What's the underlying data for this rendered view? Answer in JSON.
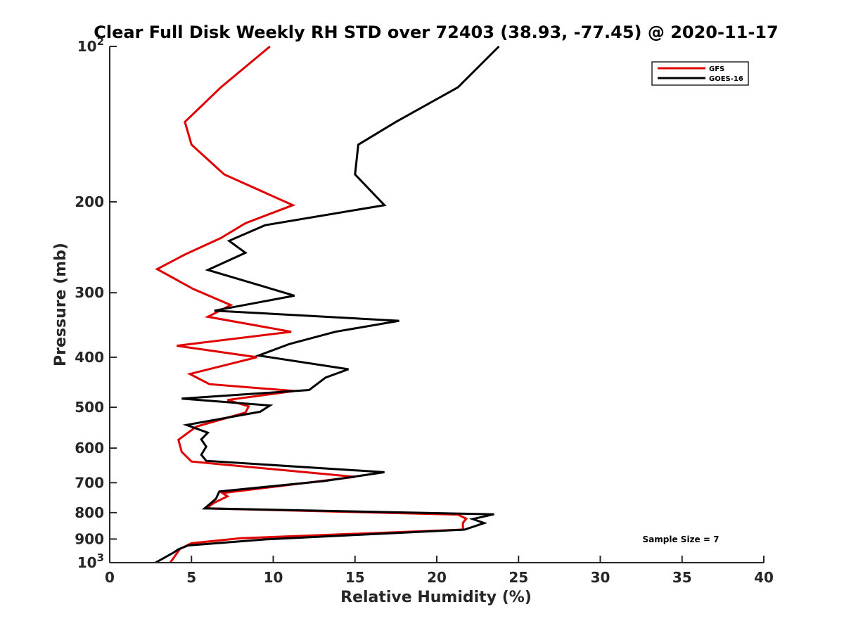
{
  "chart_data": {
    "type": "line",
    "title": "Clear Full Disk Weekly RH STD over 72403 (38.93, -77.45) @ 2020-11-17",
    "xlabel": "Relative Humidity (%)",
    "ylabel": "Pressure (mb)",
    "xlim": [
      0,
      40
    ],
    "ylim": [
      100,
      1000
    ],
    "y_scale": "log",
    "y_reversed": true,
    "grid": false,
    "legend_position": "top-right",
    "x_ticks": [
      0,
      5,
      10,
      15,
      20,
      25,
      30,
      35,
      40
    ],
    "x_tick_labels": [
      "0",
      "5",
      "10",
      "15",
      "20",
      "25",
      "30",
      "35",
      "40"
    ],
    "y_ticks": [
      100,
      200,
      300,
      400,
      500,
      600,
      700,
      800,
      900,
      1000
    ],
    "y_tick_labels": [
      {
        "base": "10",
        "exp": "2"
      },
      {
        "base": "200",
        "exp": ""
      },
      {
        "base": "300",
        "exp": ""
      },
      {
        "base": "400",
        "exp": ""
      },
      {
        "base": "500",
        "exp": ""
      },
      {
        "base": "600",
        "exp": ""
      },
      {
        "base": "700",
        "exp": ""
      },
      {
        "base": "800",
        "exp": ""
      },
      {
        "base": "900",
        "exp": ""
      },
      {
        "base": "10",
        "exp": "3"
      }
    ],
    "series": [
      {
        "name": "GFS",
        "color": "#e00000",
        "points": [
          [
            9.8,
            100
          ],
          [
            6.8,
            120
          ],
          [
            4.6,
            140
          ],
          [
            5.0,
            155
          ],
          [
            7.0,
            177
          ],
          [
            11.2,
            203
          ],
          [
            8.3,
            220
          ],
          [
            6.8,
            235
          ],
          [
            4.6,
            253
          ],
          [
            2.9,
            270
          ],
          [
            5.1,
            295
          ],
          [
            7.4,
            317
          ],
          [
            6.0,
            334
          ],
          [
            11.1,
            357
          ],
          [
            4.1,
            380
          ],
          [
            9.0,
            400
          ],
          [
            4.9,
            431
          ],
          [
            6.1,
            451
          ],
          [
            11.3,
            465
          ],
          [
            7.2,
            484
          ],
          [
            8.5,
            498
          ],
          [
            8.3,
            512
          ],
          [
            5.3,
            545
          ],
          [
            4.2,
            578
          ],
          [
            4.4,
            610
          ],
          [
            5.0,
            637
          ],
          [
            15.0,
            682
          ],
          [
            6.9,
            733
          ],
          [
            7.2,
            744
          ],
          [
            6.4,
            765
          ],
          [
            5.9,
            785
          ],
          [
            21.3,
            807
          ],
          [
            21.8,
            822
          ],
          [
            21.6,
            837
          ],
          [
            21.6,
            863
          ],
          [
            8.0,
            897
          ],
          [
            5.0,
            917
          ],
          [
            4.3,
            940
          ],
          [
            3.7,
            1000
          ]
        ]
      },
      {
        "name": "GOES-16",
        "color": "#000000",
        "points": [
          [
            23.8,
            100
          ],
          [
            21.3,
            120
          ],
          [
            17.5,
            140
          ],
          [
            15.2,
            155
          ],
          [
            15.0,
            177
          ],
          [
            16.8,
            203
          ],
          [
            9.5,
            222
          ],
          [
            7.3,
            238
          ],
          [
            8.3,
            251
          ],
          [
            6.0,
            271
          ],
          [
            11.3,
            304
          ],
          [
            6.4,
            325
          ],
          [
            17.7,
            340
          ],
          [
            13.8,
            357
          ],
          [
            11.0,
            377
          ],
          [
            9.1,
            397
          ],
          [
            14.6,
            422
          ],
          [
            13.2,
            438
          ],
          [
            12.2,
            463
          ],
          [
            4.4,
            481
          ],
          [
            9.8,
            496
          ],
          [
            9.2,
            510
          ],
          [
            4.7,
            541
          ],
          [
            6.0,
            560
          ],
          [
            5.6,
            577
          ],
          [
            5.9,
            596
          ],
          [
            5.6,
            618
          ],
          [
            5.9,
            635
          ],
          [
            16.8,
            668
          ],
          [
            13.1,
            695
          ],
          [
            6.7,
            728
          ],
          [
            6.5,
            752
          ],
          [
            5.8,
            785
          ],
          [
            23.5,
            806
          ],
          [
            22.2,
            823
          ],
          [
            22.9,
            838
          ],
          [
            21.7,
            863
          ],
          [
            9.6,
            901
          ],
          [
            4.8,
            926
          ],
          [
            4.2,
            942
          ],
          [
            3.9,
            956
          ],
          [
            2.8,
            1000
          ]
        ]
      }
    ],
    "annotation": "Sample Size = 7"
  }
}
